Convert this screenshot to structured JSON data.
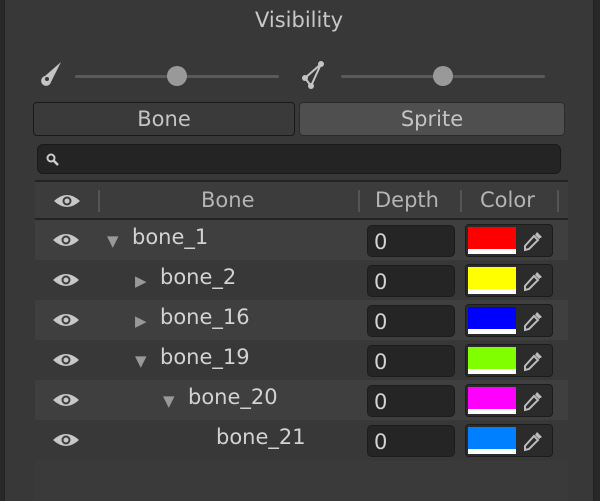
{
  "title": "Visibility",
  "sliders": [
    {
      "icon": "bone-icon",
      "value": 0.5
    },
    {
      "icon": "mesh-icon",
      "value": 0.5
    }
  ],
  "tabs": [
    {
      "label": "Bone",
      "selected": true
    },
    {
      "label": "Sprite",
      "selected": false
    }
  ],
  "search": {
    "placeholder": "",
    "value": ""
  },
  "columns": {
    "visibility": "eye-icon",
    "bone": "Bone",
    "depth": "Depth",
    "color": "Color"
  },
  "rows": [
    {
      "name": "bone_1",
      "depth": "0",
      "color": "#ff0000",
      "level": 0,
      "expander": "expanded"
    },
    {
      "name": "bone_2",
      "depth": "0",
      "color": "#ffff00",
      "level": 1,
      "expander": "collapsed"
    },
    {
      "name": "bone_16",
      "depth": "0",
      "color": "#0000ff",
      "level": 1,
      "expander": "collapsed"
    },
    {
      "name": "bone_19",
      "depth": "0",
      "color": "#80ff00",
      "level": 1,
      "expander": "expanded"
    },
    {
      "name": "bone_20",
      "depth": "0",
      "color": "#ff00ff",
      "level": 2,
      "expander": "expanded"
    },
    {
      "name": "bone_21",
      "depth": "0",
      "color": "#0080ff",
      "level": 3,
      "expander": "none"
    }
  ]
}
